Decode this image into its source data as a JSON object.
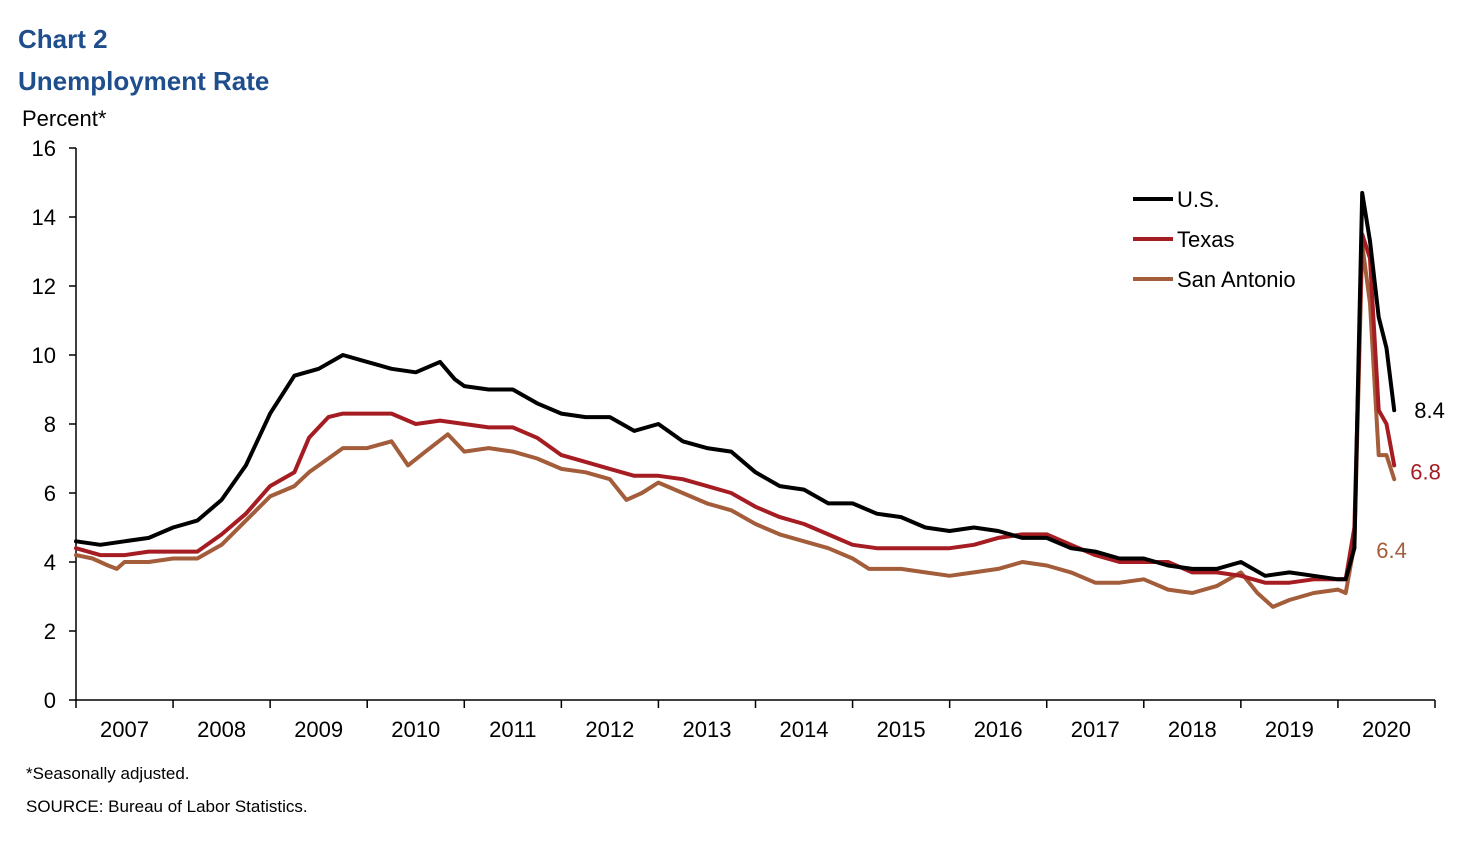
{
  "header": {
    "chart_number": "Chart 2",
    "title": "Unemployment Rate"
  },
  "footer": {
    "note": "*Seasonally adjusted.",
    "source": "SOURCE: Bureau of Labor Statistics."
  },
  "colors": {
    "title": "#1f4e8c",
    "us": "#000000",
    "texas": "#a51d23",
    "san_antonio": "#a35d3a"
  },
  "chart_data": {
    "type": "line",
    "title": "Unemployment Rate",
    "ylabel": "Percent*",
    "xlabel": "",
    "ylim": [
      0,
      16
    ],
    "yticks": [
      0,
      2,
      4,
      6,
      8,
      10,
      12,
      14,
      16
    ],
    "xlim": [
      2007.0,
      2021.0
    ],
    "x_tick_labels": [
      "2007",
      "2008",
      "2009",
      "2010",
      "2011",
      "2012",
      "2013",
      "2014",
      "2015",
      "2016",
      "2017",
      "2018",
      "2019",
      "2020"
    ],
    "legend_position": "top-right",
    "series": [
      {
        "name": "U.S.",
        "color": "#000000",
        "end_label": "8.4",
        "points": [
          [
            2007.0,
            4.6
          ],
          [
            2007.25,
            4.5
          ],
          [
            2007.5,
            4.6
          ],
          [
            2007.75,
            4.7
          ],
          [
            2008.0,
            5.0
          ],
          [
            2008.25,
            5.2
          ],
          [
            2008.5,
            5.8
          ],
          [
            2008.75,
            6.8
          ],
          [
            2009.0,
            8.3
          ],
          [
            2009.25,
            9.4
          ],
          [
            2009.5,
            9.6
          ],
          [
            2009.75,
            10.0
          ],
          [
            2010.0,
            9.8
          ],
          [
            2010.25,
            9.6
          ],
          [
            2010.5,
            9.5
          ],
          [
            2010.75,
            9.8
          ],
          [
            2010.9,
            9.3
          ],
          [
            2011.0,
            9.1
          ],
          [
            2011.25,
            9.0
          ],
          [
            2011.5,
            9.0
          ],
          [
            2011.75,
            8.6
          ],
          [
            2012.0,
            8.3
          ],
          [
            2012.25,
            8.2
          ],
          [
            2012.5,
            8.2
          ],
          [
            2012.75,
            7.8
          ],
          [
            2013.0,
            8.0
          ],
          [
            2013.25,
            7.5
          ],
          [
            2013.5,
            7.3
          ],
          [
            2013.75,
            7.2
          ],
          [
            2014.0,
            6.6
          ],
          [
            2014.25,
            6.2
          ],
          [
            2014.5,
            6.1
          ],
          [
            2014.75,
            5.7
          ],
          [
            2015.0,
            5.7
          ],
          [
            2015.25,
            5.4
          ],
          [
            2015.5,
            5.3
          ],
          [
            2015.75,
            5.0
          ],
          [
            2016.0,
            4.9
          ],
          [
            2016.25,
            5.0
          ],
          [
            2016.5,
            4.9
          ],
          [
            2016.75,
            4.7
          ],
          [
            2017.0,
            4.7
          ],
          [
            2017.25,
            4.4
          ],
          [
            2017.5,
            4.3
          ],
          [
            2017.75,
            4.1
          ],
          [
            2018.0,
            4.1
          ],
          [
            2018.25,
            3.9
          ],
          [
            2018.5,
            3.8
          ],
          [
            2018.75,
            3.8
          ],
          [
            2019.0,
            4.0
          ],
          [
            2019.25,
            3.6
          ],
          [
            2019.5,
            3.7
          ],
          [
            2019.75,
            3.6
          ],
          [
            2020.0,
            3.5
          ],
          [
            2020.08,
            3.5
          ],
          [
            2020.17,
            4.4
          ],
          [
            2020.25,
            14.7
          ],
          [
            2020.33,
            13.3
          ],
          [
            2020.42,
            11.1
          ],
          [
            2020.5,
            10.2
          ],
          [
            2020.58,
            8.4
          ]
        ]
      },
      {
        "name": "Texas",
        "color": "#a51d23",
        "end_label": "6.8",
        "points": [
          [
            2007.0,
            4.4
          ],
          [
            2007.25,
            4.2
          ],
          [
            2007.5,
            4.2
          ],
          [
            2007.75,
            4.3
          ],
          [
            2008.0,
            4.3
          ],
          [
            2008.25,
            4.3
          ],
          [
            2008.5,
            4.8
          ],
          [
            2008.75,
            5.4
          ],
          [
            2009.0,
            6.2
          ],
          [
            2009.25,
            6.6
          ],
          [
            2009.4,
            7.6
          ],
          [
            2009.6,
            8.2
          ],
          [
            2009.75,
            8.3
          ],
          [
            2010.0,
            8.3
          ],
          [
            2010.25,
            8.3
          ],
          [
            2010.5,
            8.0
          ],
          [
            2010.75,
            8.1
          ],
          [
            2011.0,
            8.0
          ],
          [
            2011.25,
            7.9
          ],
          [
            2011.5,
            7.9
          ],
          [
            2011.75,
            7.6
          ],
          [
            2012.0,
            7.1
          ],
          [
            2012.25,
            6.9
          ],
          [
            2012.5,
            6.7
          ],
          [
            2012.75,
            6.5
          ],
          [
            2013.0,
            6.5
          ],
          [
            2013.25,
            6.4
          ],
          [
            2013.5,
            6.2
          ],
          [
            2013.75,
            6.0
          ],
          [
            2014.0,
            5.6
          ],
          [
            2014.25,
            5.3
          ],
          [
            2014.5,
            5.1
          ],
          [
            2014.75,
            4.8
          ],
          [
            2015.0,
            4.5
          ],
          [
            2015.25,
            4.4
          ],
          [
            2015.5,
            4.4
          ],
          [
            2015.75,
            4.4
          ],
          [
            2016.0,
            4.4
          ],
          [
            2016.25,
            4.5
          ],
          [
            2016.5,
            4.7
          ],
          [
            2016.75,
            4.8
          ],
          [
            2017.0,
            4.8
          ],
          [
            2017.25,
            4.5
          ],
          [
            2017.5,
            4.2
          ],
          [
            2017.75,
            4.0
          ],
          [
            2018.0,
            4.0
          ],
          [
            2018.25,
            4.0
          ],
          [
            2018.5,
            3.7
          ],
          [
            2018.75,
            3.7
          ],
          [
            2019.0,
            3.6
          ],
          [
            2019.25,
            3.4
          ],
          [
            2019.5,
            3.4
          ],
          [
            2019.75,
            3.5
          ],
          [
            2020.0,
            3.5
          ],
          [
            2020.08,
            3.5
          ],
          [
            2020.17,
            5.0
          ],
          [
            2020.25,
            13.5
          ],
          [
            2020.33,
            12.8
          ],
          [
            2020.42,
            8.4
          ],
          [
            2020.5,
            8.0
          ],
          [
            2020.58,
            6.8
          ]
        ]
      },
      {
        "name": "San Antonio",
        "color": "#a35d3a",
        "end_label": "6.4",
        "points": [
          [
            2007.0,
            4.2
          ],
          [
            2007.17,
            4.1
          ],
          [
            2007.33,
            3.9
          ],
          [
            2007.42,
            3.8
          ],
          [
            2007.5,
            4.0
          ],
          [
            2007.75,
            4.0
          ],
          [
            2008.0,
            4.1
          ],
          [
            2008.25,
            4.1
          ],
          [
            2008.5,
            4.5
          ],
          [
            2008.75,
            5.2
          ],
          [
            2009.0,
            5.9
          ],
          [
            2009.25,
            6.2
          ],
          [
            2009.4,
            6.6
          ],
          [
            2009.6,
            7.0
          ],
          [
            2009.75,
            7.3
          ],
          [
            2010.0,
            7.3
          ],
          [
            2010.25,
            7.5
          ],
          [
            2010.42,
            6.8
          ],
          [
            2010.6,
            7.2
          ],
          [
            2010.83,
            7.7
          ],
          [
            2011.0,
            7.2
          ],
          [
            2011.25,
            7.3
          ],
          [
            2011.5,
            7.2
          ],
          [
            2011.75,
            7.0
          ],
          [
            2012.0,
            6.7
          ],
          [
            2012.25,
            6.6
          ],
          [
            2012.5,
            6.4
          ],
          [
            2012.67,
            5.8
          ],
          [
            2012.83,
            6.0
          ],
          [
            2013.0,
            6.3
          ],
          [
            2013.25,
            6.0
          ],
          [
            2013.5,
            5.7
          ],
          [
            2013.75,
            5.5
          ],
          [
            2014.0,
            5.1
          ],
          [
            2014.25,
            4.8
          ],
          [
            2014.5,
            4.6
          ],
          [
            2014.75,
            4.4
          ],
          [
            2015.0,
            4.1
          ],
          [
            2015.17,
            3.8
          ],
          [
            2015.5,
            3.8
          ],
          [
            2015.75,
            3.7
          ],
          [
            2016.0,
            3.6
          ],
          [
            2016.25,
            3.7
          ],
          [
            2016.5,
            3.8
          ],
          [
            2016.75,
            4.0
          ],
          [
            2017.0,
            3.9
          ],
          [
            2017.25,
            3.7
          ],
          [
            2017.5,
            3.4
          ],
          [
            2017.75,
            3.4
          ],
          [
            2018.0,
            3.5
          ],
          [
            2018.25,
            3.2
          ],
          [
            2018.5,
            3.1
          ],
          [
            2018.75,
            3.3
          ],
          [
            2019.0,
            3.7
          ],
          [
            2019.17,
            3.1
          ],
          [
            2019.33,
            2.7
          ],
          [
            2019.5,
            2.9
          ],
          [
            2019.75,
            3.1
          ],
          [
            2020.0,
            3.2
          ],
          [
            2020.08,
            3.1
          ],
          [
            2020.17,
            4.5
          ],
          [
            2020.25,
            13.2
          ],
          [
            2020.33,
            11.5
          ],
          [
            2020.42,
            7.1
          ],
          [
            2020.5,
            7.1
          ],
          [
            2020.58,
            6.4
          ]
        ]
      }
    ]
  }
}
